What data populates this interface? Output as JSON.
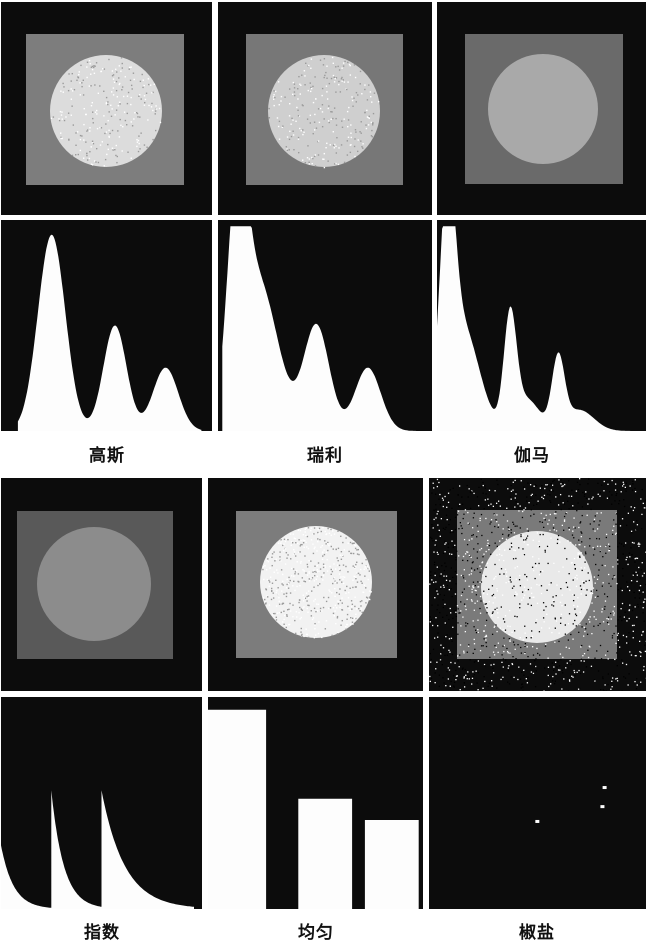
{
  "figure": {
    "labels": [
      "高斯",
      "瑞利",
      "伽马",
      "指数",
      "均匀",
      "椒盐"
    ]
  },
  "chart_data": [
    {
      "type": "area",
      "title": "",
      "noise": "Gaussian"
    },
    {
      "type": "area",
      "title": "",
      "noise": "Rayleigh"
    },
    {
      "type": "area",
      "title": "",
      "noise": "Gamma"
    },
    {
      "type": "area",
      "title": "",
      "noise": "Exponential"
    },
    {
      "type": "area",
      "title": "",
      "noise": "Uniform"
    },
    {
      "type": "bar",
      "title": "",
      "noise": "Salt-and-pepper"
    }
  ],
  "colors": {
    "background": "#0c0c0c",
    "histogram_fill": "#fdfdfd",
    "label_text": "#111111"
  }
}
